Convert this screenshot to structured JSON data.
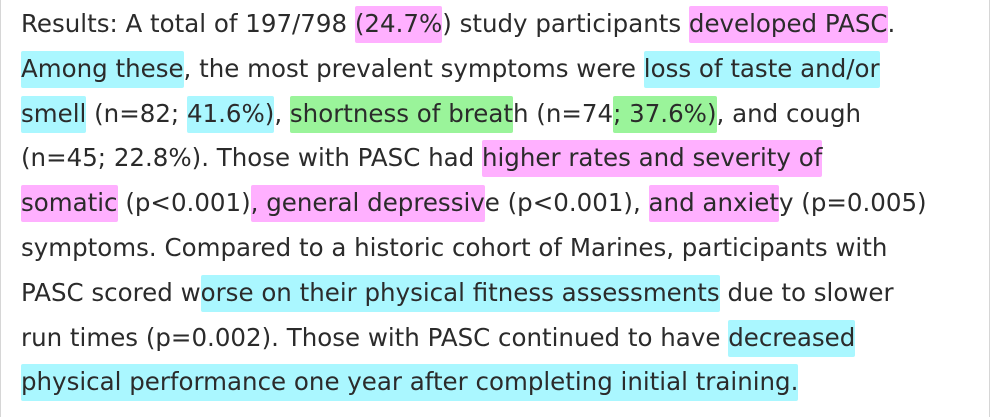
{
  "colors": {
    "pink_highlight": "#ff80ff",
    "cyan_highlight": "#64f0ff",
    "green_highlight": "#78f078",
    "text": "#2b2b2b"
  },
  "lines": [
    [
      {
        "text": "Results: A total of 197/798 "
      },
      {
        "text": "(24.7%",
        "hl": "pink"
      },
      {
        "text": ") study participants "
      },
      {
        "text": "developed PASC",
        "hl": "pink"
      },
      {
        "text": "."
      }
    ],
    [
      {
        "text": "Among these",
        "hl": "cyan"
      },
      {
        "text": ", the most prevalent symptoms were "
      },
      {
        "text": "loss of taste and/or",
        "hl": "cyan"
      }
    ],
    [
      {
        "text": "smell",
        "hl": "cyan"
      },
      {
        "text": " (n=82; "
      },
      {
        "text": "41.6%)",
        "hl": "cyan"
      },
      {
        "text": ", "
      },
      {
        "text": "shortness of breat",
        "hl": "green"
      },
      {
        "text": "h (n=74"
      },
      {
        "text": "; 37.6%)",
        "hl": "green"
      },
      {
        "text": ", and cough"
      }
    ],
    [
      {
        "text": "(n=45; 22.8%). Those with PASC had "
      },
      {
        "text": "higher rates and severity of ",
        "hl": "pink"
      }
    ],
    [
      {
        "text": "somatic",
        "hl": "pink"
      },
      {
        "text": " (p<0.001)"
      },
      {
        "text": ", general depressiv",
        "hl": "pink"
      },
      {
        "text": "e (p<0.001), "
      },
      {
        "text": "and anxiet",
        "hl": "pink"
      },
      {
        "text": "y (p=0.005)"
      }
    ],
    [
      {
        "text": "symptoms. Compared to a historic cohort of Marines, participants with"
      }
    ],
    [
      {
        "text": "PASC scored w"
      },
      {
        "text": "orse on their physical fitness assessments",
        "hl": "cyan"
      },
      {
        "text": " due to slower"
      }
    ],
    [
      {
        "text": "run times (p=0.002). Those with PASC continued to have "
      },
      {
        "text": "decreased ",
        "hl": "cyan"
      }
    ],
    [
      {
        "text": "physical performance one year after completing initial training. ",
        "hl": "cyan"
      }
    ]
  ]
}
